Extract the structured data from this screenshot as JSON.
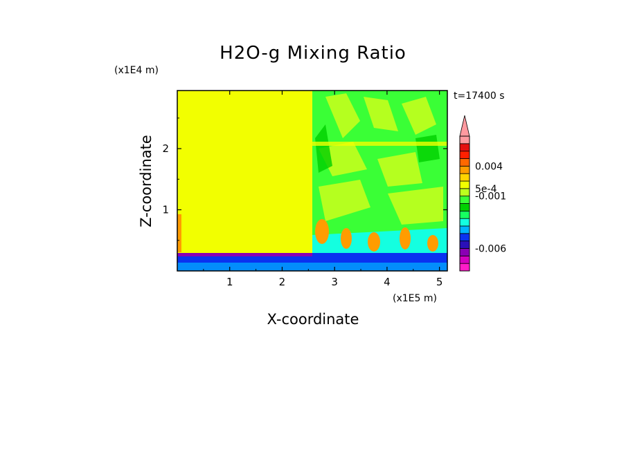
{
  "chart_data": {
    "type": "heatmap",
    "title": "H2O-g Mixing Ratio",
    "xlabel": "X-coordinate",
    "ylabel": "Z-coordinate",
    "x_scale_label": "(x1E5 m)",
    "y_scale_label": "(x1E4 m)",
    "time_label": "t=17400 s",
    "xlim": [
      0,
      5.15
    ],
    "ylim": [
      0,
      2.95
    ],
    "x_ticks": [
      "1",
      "2",
      "3",
      "4",
      "5"
    ],
    "y_ticks": [
      "1",
      "2"
    ],
    "colorbar": {
      "levels_colors": [
        "#ff1cc8",
        "#d400c0",
        "#8a00b4",
        "#2a10b8",
        "#0a32f0",
        "#00b4ff",
        "#14ffe0",
        "#16ff60",
        "#00d000",
        "#3aff36",
        "#bcff1e",
        "#f2ff00",
        "#ffd400",
        "#ff9c00",
        "#ff6800",
        "#ff2000",
        "#e41010",
        "#ff9aa0"
      ],
      "labels": [
        {
          "text": "0.004",
          "level": 14
        },
        {
          "text": "5e-4",
          "level": 11
        },
        {
          "text": "-0.001",
          "level": 10
        },
        {
          "text": "-0.006",
          "level": 3
        }
      ],
      "extend": "max"
    }
  }
}
